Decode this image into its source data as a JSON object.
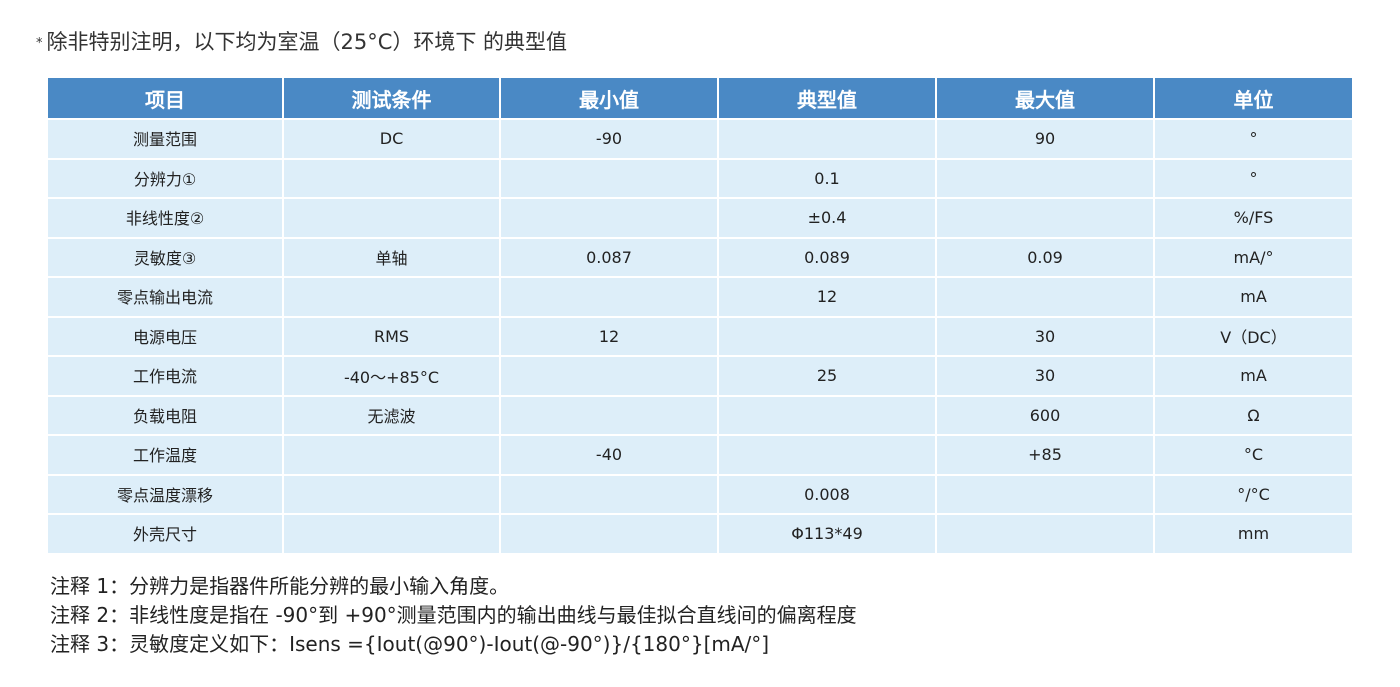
{
  "top_note": {
    "marker": "*",
    "text": "除非特别注明，以下均为室温（25°C）环境下 的典型值"
  },
  "table": {
    "headers": [
      "项目",
      "测试条件",
      "最小值",
      "典型值",
      "最大值",
      "单位"
    ],
    "rows": [
      [
        "测量范围",
        "DC",
        "-90",
        "",
        "90",
        "°"
      ],
      [
        "分辨力①",
        "",
        "",
        "0.1",
        "",
        "°"
      ],
      [
        "非线性度②",
        "",
        "",
        "±0.4",
        "",
        "%/FS"
      ],
      [
        "灵敏度③",
        "单轴",
        "0.087",
        "0.089",
        "0.09",
        "mA/°"
      ],
      [
        "零点输出电流",
        "",
        "",
        "12",
        "",
        "mA"
      ],
      [
        "电源电压",
        "RMS",
        "12",
        "",
        "30",
        "V（DC）"
      ],
      [
        "工作电流",
        "-40～+85°C",
        "",
        "25",
        "30",
        "mA"
      ],
      [
        "负载电阻",
        "无滤波",
        "",
        "",
        "600",
        "Ω"
      ],
      [
        "工作温度",
        "",
        "-40",
        "",
        "+85",
        "°C"
      ],
      [
        "零点温度漂移",
        "",
        "",
        "0.008",
        "",
        "°/°C"
      ],
      [
        "外壳尺寸",
        "",
        "",
        "Φ113*49",
        "",
        "mm"
      ]
    ]
  },
  "notes": [
    "注释 1：分辨力是指器件所能分辨的最小输入角度。",
    "注释 2：非线性度是指在 -90°到 +90°测量范围内的输出曲线与最佳拟合直线间的偏离程度",
    "注释 3：灵敏度定义如下：Isens ={Iout(@90°)-Iout(@-90°)}/{180°}[mA/°]"
  ]
}
